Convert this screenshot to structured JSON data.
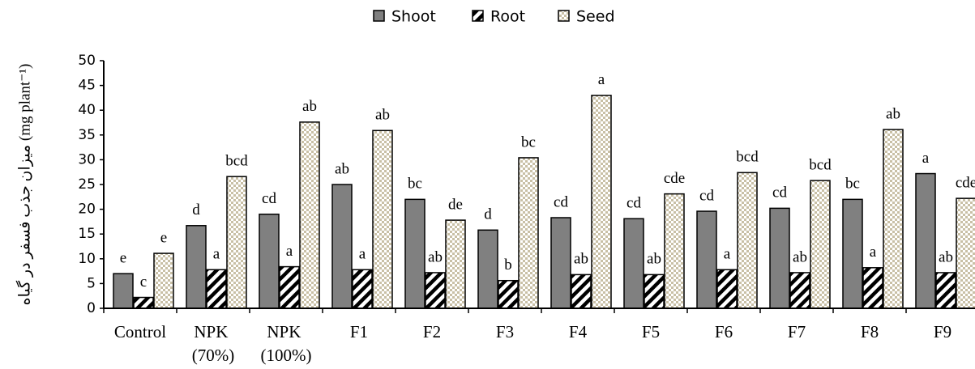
{
  "chart_data": {
    "type": "bar",
    "ylabel": "میزان جذب فسفر در گیاه (mg plant⁻¹)",
    "categories": [
      "Control",
      "NPK (70%)",
      "NPK (100%)",
      "F1",
      "F2",
      "F3",
      "F4",
      "F5",
      "F6",
      "F7",
      "F8",
      "F9"
    ],
    "series": [
      {
        "name": "Shoot",
        "color": "#808080",
        "pattern": "solid",
        "values": [
          7,
          16.7,
          19,
          25,
          22,
          15.8,
          18.3,
          18.1,
          19.6,
          20.2,
          22,
          27.2
        ],
        "letters": [
          "e",
          "d",
          "cd",
          "ab",
          "bc",
          "d",
          "cd",
          "cd",
          "cd",
          "cd",
          "bc",
          "a"
        ]
      },
      {
        "name": "Root",
        "color": "#000000",
        "pattern": "hatch",
        "values": [
          2.2,
          7.8,
          8.4,
          7.8,
          7.2,
          5.6,
          6.8,
          6.8,
          7.8,
          7.2,
          8.2,
          7.2
        ],
        "letters": [
          "c",
          "a",
          "a",
          "a",
          "ab",
          "b",
          "ab",
          "ab",
          "a",
          "ab",
          "a",
          "ab"
        ]
      },
      {
        "name": "Seed",
        "color": "#c9c0a6",
        "pattern": "check",
        "values": [
          11.1,
          26.6,
          37.6,
          35.9,
          17.8,
          30.4,
          43,
          23.1,
          27.4,
          25.8,
          36.1,
          22.2
        ],
        "letters": [
          "e",
          "bcd",
          "ab",
          "ab",
          "de",
          "bc",
          "a",
          "cde",
          "bcd",
          "bcd",
          "ab",
          "cde"
        ]
      }
    ],
    "ylim": [
      0,
      50
    ],
    "yticks": [
      0,
      5,
      10,
      15,
      20,
      25,
      30,
      35,
      40,
      45,
      50
    ],
    "grid": false,
    "legend": "top"
  }
}
